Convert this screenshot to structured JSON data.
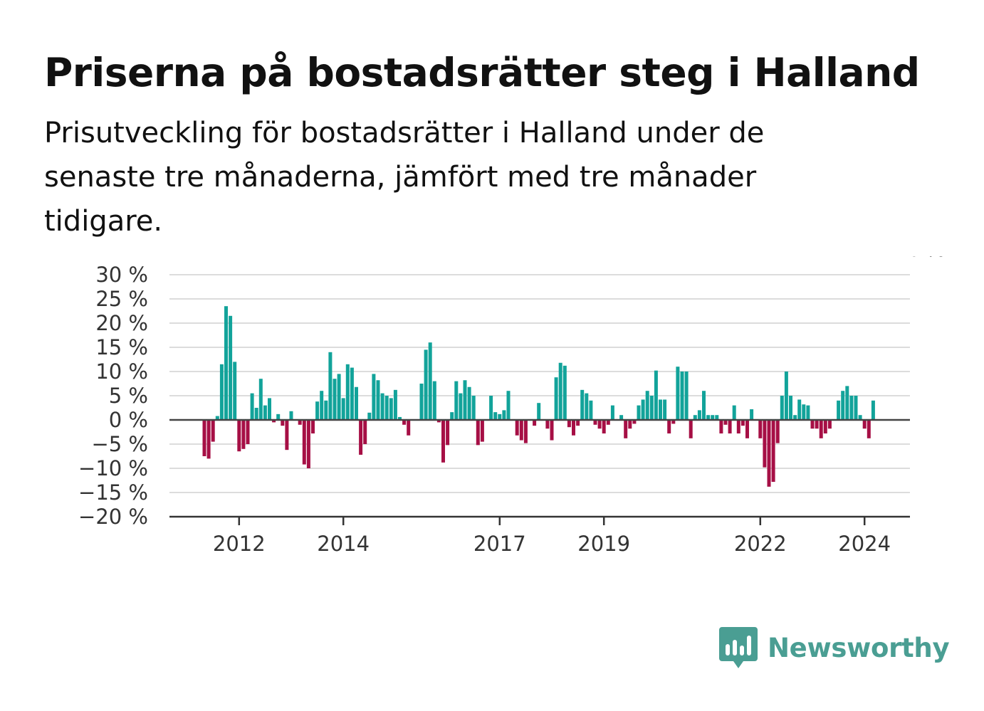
{
  "title": "Priserna på bostadsrätter steg i Halland",
  "subtitle": "Prisutveckling för bostadsrätter i Halland under de senaste tre månaderna, jämfört med tre månader tidigare.",
  "brand": {
    "name": "Newsworthy",
    "icon": "newsworthy-logo-icon",
    "color": "#4a9e93"
  },
  "chart_data": {
    "type": "bar",
    "title": "Priserna på bostadsrätter steg i Halland",
    "subtitle": "Prisutveckling för bostadsrätter i Halland under de senaste tre månaderna, jämfört med tre månader tidigare.",
    "start": "2011-05",
    "ylim": [
      -20,
      30
    ],
    "yticks": [
      30,
      25,
      20,
      15,
      10,
      5,
      0,
      -5,
      -10,
      -15,
      -20
    ],
    "ytick_labels": [
      "30 %",
      "25 %",
      "20 %",
      "15 %",
      "10 %",
      "5 %",
      "0 %",
      "−5 %",
      "−10 %",
      "−15 %",
      "−20 %"
    ],
    "xticks": [
      {
        "year": "2012",
        "index": 8
      },
      {
        "year": "2014",
        "index": 32
      },
      {
        "year": "2017",
        "index": 68
      },
      {
        "year": "2019",
        "index": 92
      },
      {
        "year": "2022",
        "index": 128
      },
      {
        "year": "2024",
        "index": 152
      }
    ],
    "grid": true,
    "positive_color": "#12a39a",
    "negative_color": "#a60f45",
    "values": [
      -7.5,
      -8,
      -4.5,
      0.8,
      11.5,
      23.5,
      21.5,
      12,
      -6.5,
      -6,
      -5,
      5.5,
      2.5,
      8.5,
      3,
      4.5,
      -0.5,
      1.2,
      -1.2,
      -6.2,
      1.8,
      0,
      -1,
      -9.2,
      -10,
      -2.8,
      3.8,
      6,
      4,
      14,
      8.5,
      9.5,
      4.5,
      11.5,
      10.8,
      6.8,
      -7.2,
      -5,
      1.5,
      9.5,
      8.2,
      5.5,
      5,
      4.5,
      6.2,
      0.6,
      -1,
      -3.2,
      0,
      0,
      7.5,
      14.5,
      16,
      8,
      -0.5,
      -8.8,
      -5.2,
      1.6,
      8,
      5.5,
      8.2,
      6.8,
      5,
      -5.2,
      -4.5,
      0,
      5,
      1.6,
      1.2,
      2,
      6,
      0,
      -3.2,
      -4.2,
      -4.8,
      0,
      -1.2,
      3.5,
      0,
      -1.8,
      -4.2,
      8.8,
      11.8,
      11.2,
      -1.5,
      -3.2,
      -1.2,
      6.2,
      5.5,
      4,
      -1,
      -1.8,
      -2.8,
      -1,
      3,
      0,
      1,
      -3.8,
      -1.8,
      -0.8,
      3,
      4.2,
      6,
      5,
      10.2,
      4.2,
      4.2,
      -2.8,
      -0.8,
      11,
      10,
      10,
      -3.8,
      1,
      2,
      6,
      1,
      1,
      1,
      -2.8,
      -1,
      -2.8,
      3,
      -2.8,
      -1.2,
      -3.8,
      2.2,
      0,
      -3.8,
      -9.8,
      -13.8,
      -12.8,
      -4.8,
      5,
      10,
      5,
      1,
      4.2,
      3.2,
      3,
      -1.8,
      -1.8,
      -3.8,
      -2.8,
      -1.8,
      0,
      4,
      6,
      7,
      5,
      5,
      1,
      -1.8,
      -3.8,
      4
    ],
    "annotation": {
      "index": 166,
      "label": "4 %"
    }
  }
}
